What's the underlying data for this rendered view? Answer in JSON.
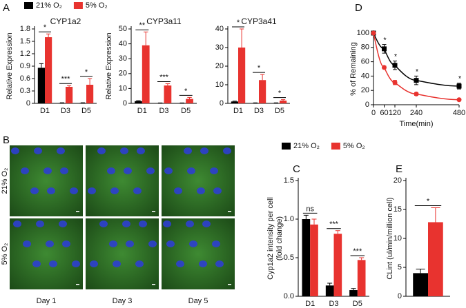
{
  "panel_labels": [
    "A",
    "B",
    "C",
    "D",
    "E"
  ],
  "image_panel": {
    "row_labels": [
      "21% O₂",
      "5% O₂"
    ],
    "col_labels": [
      "Day 1",
      "Day 3",
      "Day 5"
    ]
  },
  "chart_data": [
    {
      "type": "bar",
      "title": "CYP1a2",
      "ylabel": [
        "Relative Expression"
      ],
      "categories": [
        "D1",
        "D3",
        "D5"
      ],
      "series": [
        {
          "name": "21% O₂",
          "color": "#000000",
          "values": [
            0.86,
            0.01,
            0.01
          ],
          "errors": [
            0.1,
            0.005,
            0.005
          ]
        },
        {
          "name": "5% O₂",
          "color": "#e8332f",
          "values": [
            1.6,
            0.4,
            0.45
          ],
          "errors": [
            0.08,
            0.03,
            0.15
          ]
        }
      ],
      "annotations": [
        "*",
        "***",
        "*"
      ],
      "ylim": [
        0,
        1.8
      ],
      "yticks": [
        0,
        0.3,
        0.6,
        0.9,
        1.2,
        1.5,
        1.8
      ]
    },
    {
      "type": "bar",
      "title": "CYP3a11",
      "ylabel": [
        "Relative Expression"
      ],
      "categories": [
        "D1",
        "D3",
        "D5"
      ],
      "series": [
        {
          "color": "#000000",
          "values": [
            1.5,
            0.2,
            0.2
          ],
          "errors": [
            0.3,
            0.1,
            0.1
          ]
        },
        {
          "color": "#e8332f",
          "values": [
            39,
            12,
            3
          ],
          "errors": [
            9,
            1.2,
            1
          ]
        }
      ],
      "annotations": [
        "**",
        "***",
        "*"
      ],
      "ylim": [
        0,
        50
      ],
      "yticks": [
        0,
        10,
        20,
        30,
        40,
        50
      ]
    },
    {
      "type": "bar",
      "title": "CYP3a41",
      "categories": [
        "D1",
        "D3",
        "D5"
      ],
      "series": [
        {
          "color": "#000000",
          "values": [
            1,
            0.2,
            0.2
          ],
          "errors": [
            0.2,
            0.1,
            0.1
          ]
        },
        {
          "color": "#e8332f",
          "values": [
            30,
            12.5,
            1.5
          ],
          "errors": [
            10,
            3,
            0.5
          ]
        }
      ],
      "annotations": [
        "*",
        "*",
        "*"
      ],
      "ylim": [
        0,
        40
      ],
      "yticks": [
        0,
        10,
        20,
        30,
        40
      ]
    },
    {
      "type": "bar",
      "ylabel": [
        "Cyp1a2 intensity per cell",
        "(fold change)"
      ],
      "categories": [
        "D1",
        "D3",
        "D5"
      ],
      "series": [
        {
          "name": "21% O₂",
          "color": "#000000",
          "values": [
            1.0,
            0.14,
            0.08
          ],
          "errors": [
            0.05,
            0.03,
            0.02
          ]
        },
        {
          "name": "5% O₂",
          "color": "#e8332f",
          "values": [
            0.93,
            0.81,
            0.47
          ],
          "errors": [
            0.07,
            0.04,
            0.03
          ]
        }
      ],
      "annotations": [
        "ns",
        "***",
        "***"
      ],
      "ylim": [
        0,
        1.5
      ],
      "yticks": [
        {
          "value": 0,
          "label": "0.0"
        },
        0.5,
        {
          "value": 1,
          "label": "1.0"
        },
        1.5
      ]
    },
    {
      "type": "bar",
      "ylabel": [
        "CLint (ul/min/million cell)"
      ],
      "categories": [
        null
      ],
      "series": [
        {
          "color": "#000000",
          "values": [
            4
          ],
          "errors": [
            0.7
          ]
        },
        {
          "color": "#e8332f",
          "values": [
            12.8
          ],
          "errors": [
            2.5
          ]
        }
      ],
      "annotations": [
        "*"
      ],
      "ylim": [
        0,
        20
      ],
      "yticks": [
        0,
        5,
        10,
        15,
        20
      ]
    },
    {
      "type": "line",
      "ylabel": [
        "% of Remaining"
      ],
      "xlabel": "Time(min)",
      "x": [
        0,
        60,
        120,
        240,
        480
      ],
      "series": [
        {
          "color": "#000000",
          "marker": "square",
          "values": [
            100,
            78,
            55,
            34,
            26
          ],
          "errors": [
            1,
            6,
            6,
            6,
            4
          ]
        },
        {
          "color": "#e8332f",
          "marker": "circle",
          "values": [
            100,
            52,
            31,
            15,
            7
          ],
          "errors": [
            1,
            2,
            3,
            2,
            1
          ]
        }
      ],
      "annotations": [
        null,
        "*",
        "*",
        "*",
        "*"
      ],
      "xlim": [
        0,
        480
      ],
      "xticks": [
        0,
        60,
        120,
        240,
        480
      ],
      "ylim": [
        0,
        100
      ],
      "yticks": [
        0,
        20,
        40,
        60,
        80,
        100
      ]
    }
  ]
}
